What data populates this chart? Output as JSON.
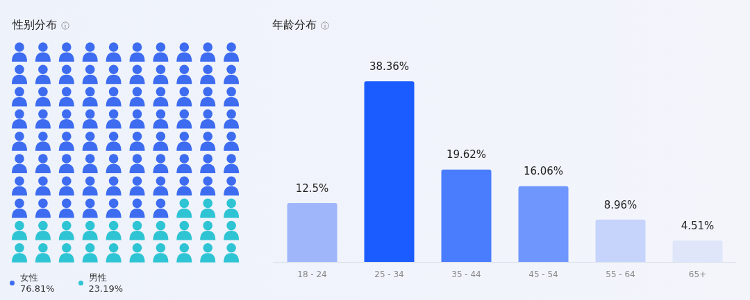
{
  "chart_data": [
    {
      "type": "other",
      "title": "性别分布",
      "categories": [
        "女性",
        "男性"
      ],
      "values": [
        76.81,
        23.19
      ],
      "value_labels": [
        "76.81%",
        "23.19%"
      ],
      "colors": [
        "#3d6cf0",
        "#2ec4d4"
      ]
    },
    {
      "type": "bar",
      "title": "年龄分布",
      "categories": [
        "18 - 24",
        "25 - 34",
        "35 - 44",
        "45 - 54",
        "55 - 64",
        "65+"
      ],
      "values": [
        12.5,
        38.36,
        19.62,
        16.06,
        8.96,
        4.51
      ],
      "value_labels": [
        "12.5%",
        "38.36%",
        "19.62%",
        "16.06%",
        "8.96%",
        "4.51%"
      ],
      "colors": [
        "#9fb6fb",
        "#1a5cff",
        "#4a7cfe",
        "#6f96fc",
        "#c6d4fb",
        "#dfe6fa"
      ]
    }
  ]
}
